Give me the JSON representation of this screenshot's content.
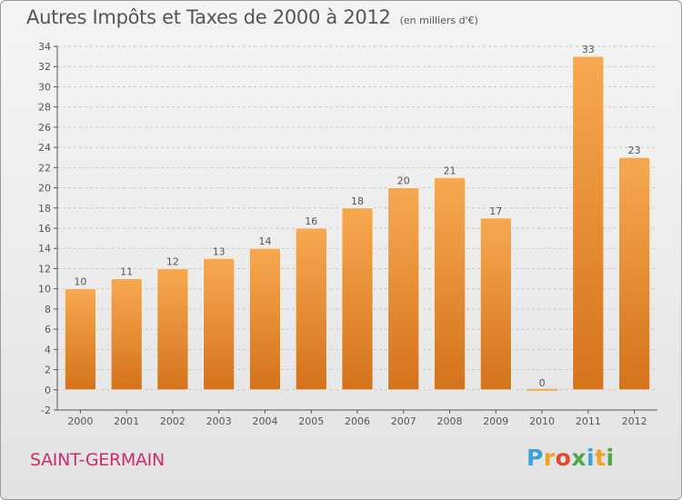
{
  "header": {
    "title": "Autres Impôts et Taxes de 2000 à 2012",
    "subtitle": "(en milliers d'€)"
  },
  "footer": {
    "commune": "SAINT-GERMAIN",
    "logo": {
      "letters": [
        "P",
        "r",
        "o",
        "x",
        "i",
        "t",
        "i"
      ],
      "colors": [
        "#3aa4d8",
        "#f2a31b",
        "#e04a2c",
        "#4aa845",
        "#3aa4d8",
        "#f2a31b",
        "#4aa845"
      ]
    }
  },
  "colors": {
    "bar_light": "#f7a950",
    "bar_dark": "#d4731c",
    "axis": "#555555",
    "grid": "#c8c8c8",
    "title": "#555555",
    "commune": "#d12a6a"
  },
  "chart_data": {
    "type": "bar",
    "title": "Autres Impôts et Taxes de 2000 à 2012",
    "subtitle": "(en milliers d'€)",
    "categories": [
      "2000",
      "2001",
      "2002",
      "2003",
      "2004",
      "2005",
      "2006",
      "2007",
      "2008",
      "2009",
      "2010",
      "2011",
      "2012"
    ],
    "values": [
      10,
      11,
      12,
      13,
      14,
      16,
      18,
      20,
      21,
      17,
      0,
      33,
      23
    ],
    "data_labels": [
      "10",
      "11",
      "12",
      "13",
      "14",
      "16",
      "18",
      "20",
      "21",
      "17",
      "0",
      "33",
      "23"
    ],
    "ylim": [
      -2,
      34
    ],
    "yticks": [
      -2,
      0,
      2,
      4,
      6,
      8,
      10,
      12,
      14,
      16,
      18,
      20,
      22,
      24,
      26,
      28,
      30,
      32,
      34
    ],
    "xlabel": "",
    "ylabel": "",
    "grid": "horizontal dashed",
    "legend": "none"
  }
}
